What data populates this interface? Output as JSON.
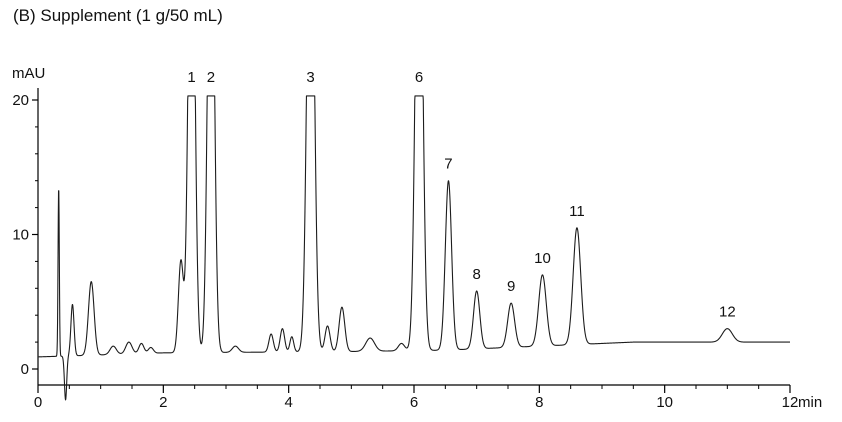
{
  "chart_data": {
    "type": "line",
    "title": "(B) Supplement (1 g/50 mL)",
    "xlabel": "min",
    "ylabel": "mAU",
    "xlim": [
      0,
      12
    ],
    "ylim": [
      -2.5,
      21
    ],
    "x_major_ticks": [
      0,
      2,
      4,
      6,
      8,
      10,
      12
    ],
    "x_minor_tick_step": 0.5,
    "y_major_ticks": [
      0,
      10,
      20
    ],
    "y_minor_tick_step": 2,
    "detector_clip_mAU": 20.3,
    "line_color": "#1c1c1c",
    "labeled_peaks": [
      {
        "label": "1",
        "rt_min": 2.45,
        "height_mAU": 20.3,
        "clipped": true,
        "sigma_min": 0.05
      },
      {
        "label": "2",
        "rt_min": 2.76,
        "height_mAU": 20.3,
        "clipped": true,
        "sigma_min": 0.05
      },
      {
        "label": "3",
        "rt_min": 4.35,
        "height_mAU": 20.3,
        "clipped": true,
        "sigma_min": 0.055
      },
      {
        "label": "6",
        "rt_min": 6.08,
        "height_mAU": 20.3,
        "clipped": true,
        "sigma_min": 0.055
      },
      {
        "label": "7",
        "rt_min": 6.55,
        "height_mAU": 14.0,
        "clipped": false,
        "sigma_min": 0.05
      },
      {
        "label": "8",
        "rt_min": 7.0,
        "height_mAU": 5.8,
        "clipped": false,
        "sigma_min": 0.05
      },
      {
        "label": "9",
        "rt_min": 7.55,
        "height_mAU": 4.9,
        "clipped": false,
        "sigma_min": 0.055
      },
      {
        "label": "10",
        "rt_min": 8.05,
        "height_mAU": 7.0,
        "clipped": false,
        "sigma_min": 0.06
      },
      {
        "label": "11",
        "rt_min": 8.6,
        "height_mAU": 10.5,
        "clipped": false,
        "sigma_min": 0.06
      },
      {
        "label": "12",
        "rt_min": 11.0,
        "height_mAU": 3.0,
        "clipped": false,
        "sigma_min": 0.08
      }
    ],
    "unlabeled_features": [
      {
        "rt_min": 0.33,
        "height_mAU": 13.5,
        "sigma_min": 0.01
      },
      {
        "rt_min": 0.44,
        "height_mAU": -2.3,
        "sigma_min": 0.018
      },
      {
        "rt_min": 0.55,
        "height_mAU": 4.8,
        "sigma_min": 0.025
      },
      {
        "rt_min": 0.85,
        "height_mAU": 6.5,
        "sigma_min": 0.045
      },
      {
        "rt_min": 1.2,
        "height_mAU": 1.7,
        "sigma_min": 0.05
      },
      {
        "rt_min": 1.45,
        "height_mAU": 2.0,
        "sigma_min": 0.05
      },
      {
        "rt_min": 1.65,
        "height_mAU": 1.9,
        "sigma_min": 0.04
      },
      {
        "rt_min": 1.8,
        "height_mAU": 1.6,
        "sigma_min": 0.04
      },
      {
        "rt_min": 2.28,
        "height_mAU": 8.0,
        "sigma_min": 0.04
      },
      {
        "rt_min": 3.15,
        "height_mAU": 1.7,
        "sigma_min": 0.05
      },
      {
        "rt_min": 3.72,
        "height_mAU": 2.6,
        "sigma_min": 0.035
      },
      {
        "rt_min": 3.9,
        "height_mAU": 3.0,
        "sigma_min": 0.035
      },
      {
        "rt_min": 4.05,
        "height_mAU": 2.4,
        "sigma_min": 0.03
      },
      {
        "rt_min": 4.62,
        "height_mAU": 3.2,
        "sigma_min": 0.04
      },
      {
        "rt_min": 4.85,
        "height_mAU": 4.6,
        "sigma_min": 0.045
      },
      {
        "rt_min": 5.3,
        "height_mAU": 2.3,
        "sigma_min": 0.07
      },
      {
        "rt_min": 5.8,
        "height_mAU": 1.9,
        "sigma_min": 0.05
      }
    ],
    "baseline_mAU": [
      [
        0,
        0.9
      ],
      [
        0.7,
        1.0
      ],
      [
        2.0,
        1.2
      ],
      [
        5.0,
        1.3
      ],
      [
        6.5,
        1.4
      ],
      [
        8.0,
        1.7
      ],
      [
        9.5,
        2.0
      ],
      [
        12,
        2.0
      ]
    ]
  }
}
